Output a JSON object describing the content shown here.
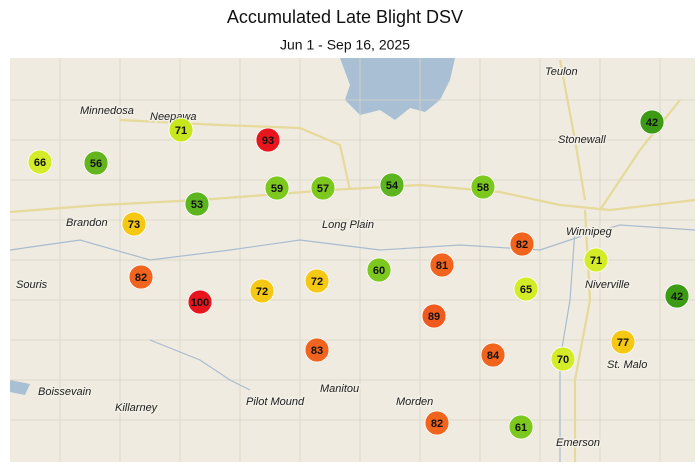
{
  "header": {
    "title": "Accumulated Late Blight DSV",
    "subtitle": "Jun 1 - Sep 16, 2025"
  },
  "places": [
    {
      "name": "Teulon"
    },
    {
      "name": "Minnedosa"
    },
    {
      "name": "Neepawa"
    },
    {
      "name": "Stonewall"
    },
    {
      "name": "Winnipeg"
    },
    {
      "name": "Brandon"
    },
    {
      "name": "Long Plain"
    },
    {
      "name": "Souris"
    },
    {
      "name": "Niverville"
    },
    {
      "name": "St. Malo"
    },
    {
      "name": "Boissevain"
    },
    {
      "name": "Killarney"
    },
    {
      "name": "Pilot Mound"
    },
    {
      "name": "Manitou"
    },
    {
      "name": "Morden"
    },
    {
      "name": "Emerson"
    }
  ],
  "stations": [
    {
      "value": 71,
      "color": "#c8e61e"
    },
    {
      "value": 93,
      "color": "#e8141e"
    },
    {
      "value": 66,
      "color": "#d4ec28"
    },
    {
      "value": 56,
      "color": "#64b41e"
    },
    {
      "value": 59,
      "color": "#7cc81e"
    },
    {
      "value": 57,
      "color": "#7cc81e"
    },
    {
      "value": 54,
      "color": "#5cb41e"
    },
    {
      "value": 58,
      "color": "#7cc81e"
    },
    {
      "value": 42,
      "color": "#3c9a14"
    },
    {
      "value": 53,
      "color": "#5cb41e"
    },
    {
      "value": 73,
      "color": "#f5c814"
    },
    {
      "value": 82,
      "color": "#f0641e"
    },
    {
      "value": 71,
      "color": "#d4ec28"
    },
    {
      "value": 82,
      "color": "#f0641e"
    },
    {
      "value": 100,
      "color": "#e8141e"
    },
    {
      "value": 72,
      "color": "#f5c814"
    },
    {
      "value": 72,
      "color": "#f5c814"
    },
    {
      "value": 60,
      "color": "#7cc81e"
    },
    {
      "value": 81,
      "color": "#f0641e"
    },
    {
      "value": 65,
      "color": "#d4ec28"
    },
    {
      "value": 42,
      "color": "#3c9a14"
    },
    {
      "value": 89,
      "color": "#f05a1e"
    },
    {
      "value": 77,
      "color": "#f5c814"
    },
    {
      "value": 83,
      "color": "#f0641e"
    },
    {
      "value": 84,
      "color": "#f0641e"
    },
    {
      "value": 70,
      "color": "#d4ec28"
    },
    {
      "value": 82,
      "color": "#f0641e"
    },
    {
      "value": 61,
      "color": "#7cc81e"
    }
  ]
}
